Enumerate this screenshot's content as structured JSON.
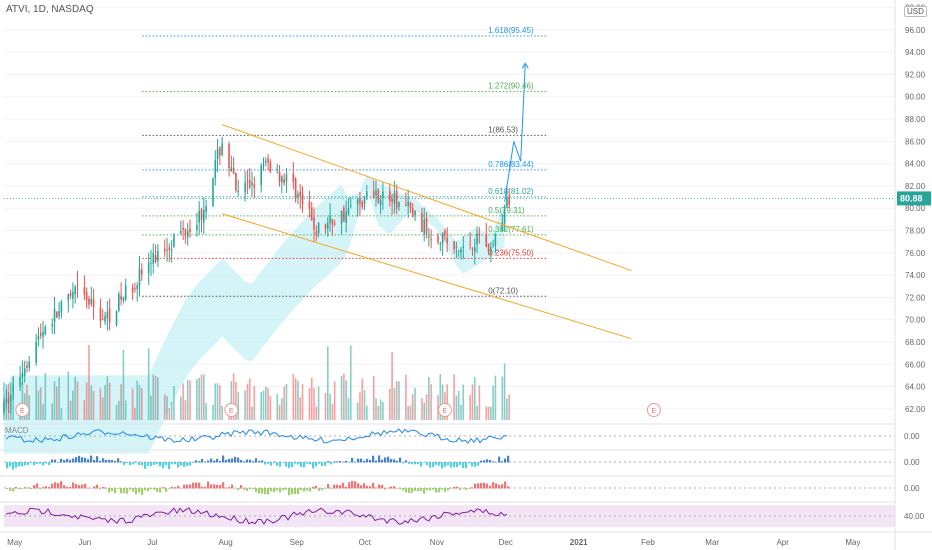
{
  "header": {
    "symbol_line": "ATVI, 1D, NASDAQ",
    "currency": "USD"
  },
  "colors": {
    "up": "#26a69a",
    "down": "#ef5350",
    "channel": "#f5a623",
    "projection": "#2196f3",
    "cloud": "#b2ebf2",
    "rsi_fill": "#f3e5f5",
    "rsi_line": "#7b1fa2",
    "price_tag": "#26a69a"
  },
  "chart_data": {
    "type": "candlestick",
    "price_axis": {
      "ticks": [
        "98.00",
        "96.00",
        "94.00",
        "92.00",
        "90.00",
        "88.00",
        "86.00",
        "84.00",
        "82.00",
        "80.00",
        "78.00",
        "76.00",
        "74.00",
        "72.00",
        "70.00",
        "68.00",
        "66.00",
        "64.00",
        "62.00"
      ],
      "range": [
        61,
        98.5
      ]
    },
    "time_axis": {
      "ticks": [
        "May",
        "Jun",
        "Jul",
        "Aug",
        "Sep",
        "Oct",
        "Nov",
        "Dec",
        "2021",
        "Feb",
        "Mar",
        "Apr",
        "May"
      ],
      "start": "2020-04-27",
      "end": "2021-05-20"
    },
    "last_price": "80.88",
    "fibonacci": [
      {
        "label": "1.618(95.45)",
        "price": 95.45,
        "color": "#2196f3"
      },
      {
        "label": "1.272(90.46)",
        "price": 90.46,
        "color": "#4caf50"
      },
      {
        "label": "1(86.53)",
        "price": 86.53,
        "color": "#555555"
      },
      {
        "label": "0.786(83.44)",
        "price": 83.44,
        "color": "#2196f3"
      },
      {
        "label": "0.618(81.02)",
        "price": 81.02,
        "color": "#26a69a"
      },
      {
        "label": "0.5(79.31)",
        "price": 79.31,
        "color": "#4caf50"
      },
      {
        "label": "0.382(77.61)",
        "price": 77.61,
        "color": "#4caf50"
      },
      {
        "label": "0.236(75.50)",
        "price": 75.5,
        "color": "#e53935"
      },
      {
        "label": "0(72.10)",
        "price": 72.1,
        "color": "#555555"
      }
    ],
    "channel": {
      "upper": [
        [
          "2020-07-31",
          87.5
        ],
        [
          "2020-12-10",
          77.8
        ]
      ],
      "lower": [
        [
          "2020-07-31",
          79.5
        ],
        [
          "2020-12-10",
          71.2
        ]
      ]
    },
    "projection": [
      [
        "2020-12-01",
        80.6
      ],
      [
        "2020-12-05",
        86.0
      ],
      [
        "2020-12-08",
        84.2
      ],
      [
        "2020-12-10",
        93.0
      ]
    ],
    "earnings_markers": [
      {
        "label": "E",
        "date": "2020-05-05"
      },
      {
        "label": "E",
        "date": "2020-08-04"
      },
      {
        "label": "E",
        "date": "2020-11-05"
      },
      {
        "label": "E",
        "date": "2021-02-04"
      }
    ],
    "anchors": [
      [
        "2020-04-27",
        62
      ],
      [
        "2020-05-06",
        66
      ],
      [
        "2020-05-15",
        69.5
      ],
      [
        "2020-05-29",
        72.5
      ],
      [
        "2020-06-10",
        70
      ],
      [
        "2020-06-25",
        74
      ],
      [
        "2020-07-06",
        76.5
      ],
      [
        "2020-07-22",
        79.5
      ],
      [
        "2020-07-31",
        86
      ],
      [
        "2020-08-07",
        81
      ],
      [
        "2020-08-20",
        84
      ],
      [
        "2020-08-31",
        82
      ],
      [
        "2020-09-10",
        78
      ],
      [
        "2020-09-22",
        79.5
      ],
      [
        "2020-10-05",
        81.5
      ],
      [
        "2020-10-20",
        80
      ],
      [
        "2020-10-28",
        78
      ],
      [
        "2020-11-04",
        77.5
      ],
      [
        "2020-11-10",
        76
      ],
      [
        "2020-11-20",
        77.5
      ],
      [
        "2020-11-25",
        76.3
      ],
      [
        "2020-12-03",
        80.88
      ]
    ],
    "lower_panes": [
      {
        "name": "MACD",
        "axis_label": "0.00"
      },
      {
        "name": "",
        "axis_label": "0.00"
      },
      {
        "name": "",
        "axis_label": "0.00"
      },
      {
        "name": "",
        "axis_label": "40.00"
      }
    ]
  }
}
